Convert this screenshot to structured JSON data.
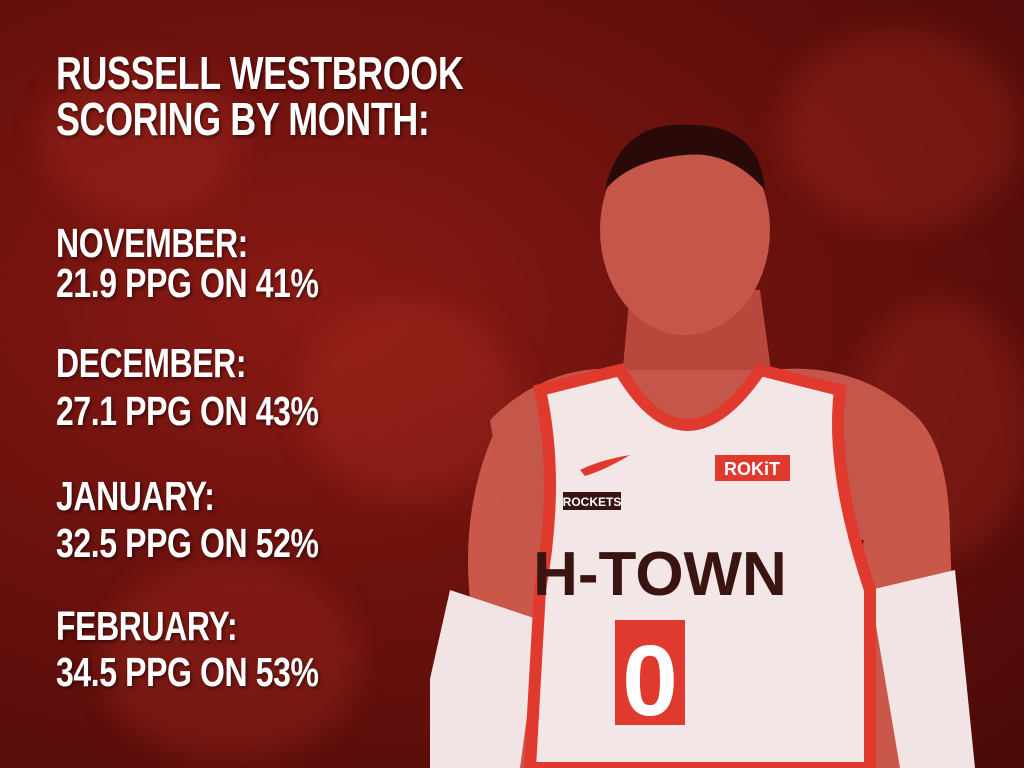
{
  "headline": [
    "RUSSELL WESTBROOK",
    "SCORING BY MONTH:"
  ],
  "months": [
    {
      "month": "NOVEMBER:",
      "stat": "21.9 PPG ON 41%"
    },
    {
      "month": "DECEMBER:",
      "stat": "27.1 PPG ON 43%"
    },
    {
      "month": "JANUARY:",
      "stat": "32.5 PPG ON 52%"
    },
    {
      "month": "FEBRUARY:",
      "stat": "34.5 PPG ON 53%"
    }
  ],
  "jersey": {
    "sponsor": "ROKiT",
    "team": "ROCKETS",
    "wordmark": "H-TOWN",
    "number": "0"
  },
  "colors": {
    "background": "#6e120e",
    "text": "#ffffff",
    "jersey_trim": "#e03a2e"
  }
}
